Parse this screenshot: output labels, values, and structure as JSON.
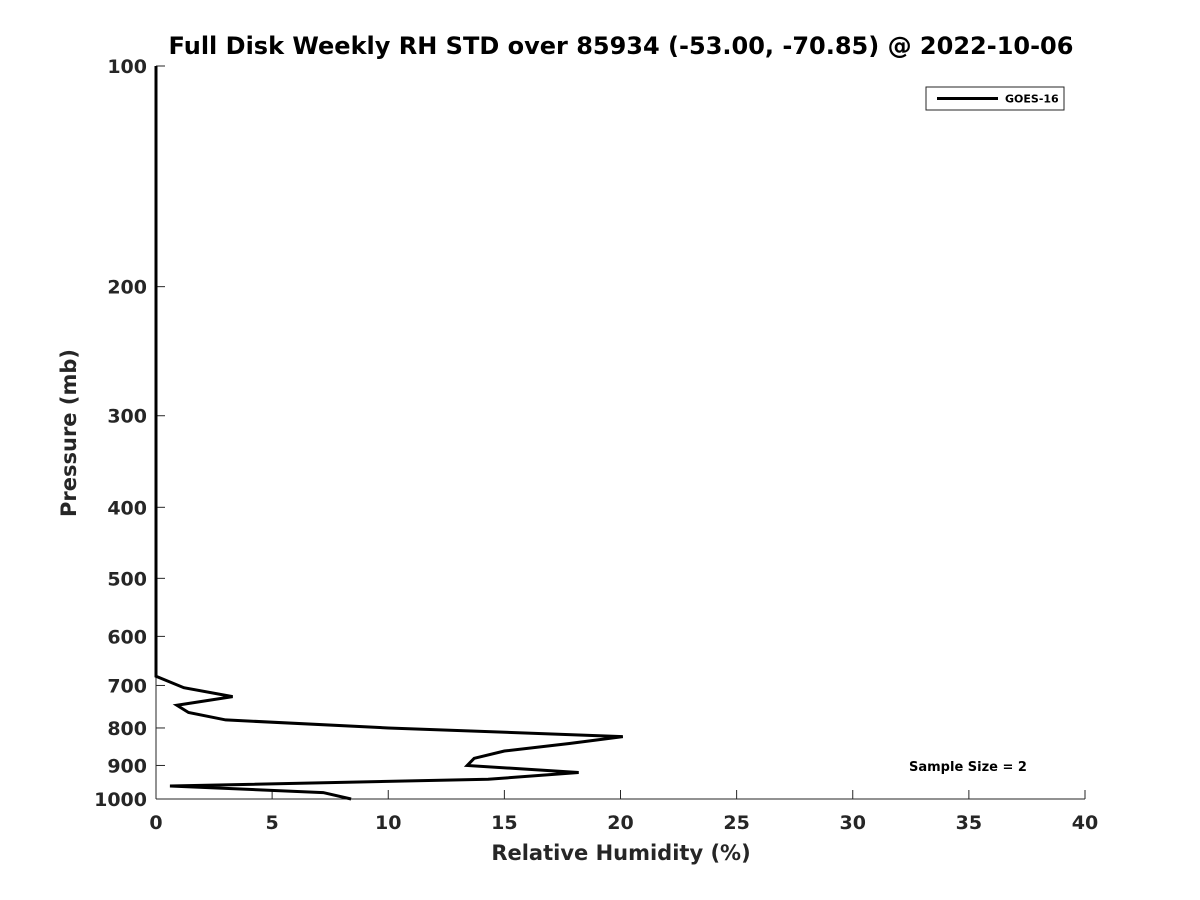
{
  "chart_data": {
    "type": "line",
    "title": "Full Disk Weekly RH STD over 85934 (-53.00, -70.85) @ 2022-10-06",
    "xlabel": "Relative Humidity (%)",
    "ylabel": "Pressure (mb)",
    "xlim": [
      0,
      40
    ],
    "ylim": [
      100,
      1000
    ],
    "yscale": "log",
    "y_reversed": true,
    "grid": false,
    "legend_position": "top-right",
    "x_ticks": [
      0,
      5,
      10,
      15,
      20,
      25,
      30,
      35,
      40
    ],
    "y_ticks": [
      100,
      200,
      300,
      400,
      500,
      600,
      700,
      800,
      900,
      1000
    ],
    "series": [
      {
        "name": "GOES-16",
        "color": "#000000",
        "points": [
          {
            "x": 0.0,
            "y": 100
          },
          {
            "x": 0.0,
            "y": 150
          },
          {
            "x": 0.0,
            "y": 200
          },
          {
            "x": 0.0,
            "y": 250
          },
          {
            "x": 0.0,
            "y": 300
          },
          {
            "x": 0.0,
            "y": 400
          },
          {
            "x": 0.0,
            "y": 500
          },
          {
            "x": 0.0,
            "y": 600
          },
          {
            "x": 0.0,
            "y": 680
          },
          {
            "x": 1.2,
            "y": 705
          },
          {
            "x": 3.3,
            "y": 725
          },
          {
            "x": 0.9,
            "y": 745
          },
          {
            "x": 1.4,
            "y": 762
          },
          {
            "x": 3.0,
            "y": 780
          },
          {
            "x": 10.0,
            "y": 800
          },
          {
            "x": 20.1,
            "y": 822
          },
          {
            "x": 17.8,
            "y": 840
          },
          {
            "x": 15.0,
            "y": 860
          },
          {
            "x": 13.7,
            "y": 880
          },
          {
            "x": 13.4,
            "y": 900
          },
          {
            "x": 18.2,
            "y": 920
          },
          {
            "x": 14.3,
            "y": 940
          },
          {
            "x": 0.6,
            "y": 960
          },
          {
            "x": 7.2,
            "y": 980
          },
          {
            "x": 8.4,
            "y": 1000
          }
        ]
      }
    ],
    "annotation": "Sample Size = 2"
  }
}
